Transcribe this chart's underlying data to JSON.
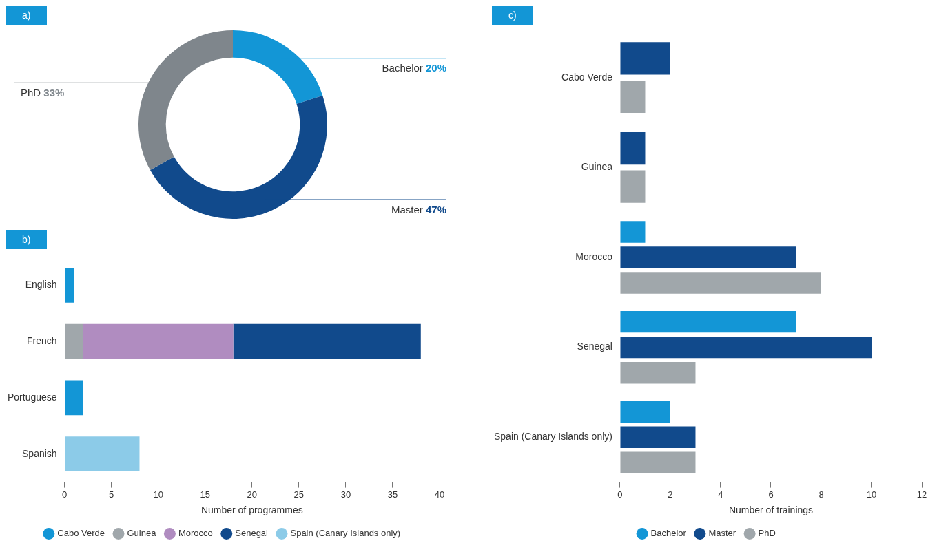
{
  "chart_data": [
    {
      "type": "donut",
      "title": "a)",
      "categories": [
        "Bachelor",
        "Master",
        "PhD"
      ],
      "values": [
        20,
        47,
        33
      ],
      "colors": [
        "#1396d6",
        "#114a8c",
        "#7f868c"
      ],
      "value_labels": [
        "20%",
        "47%",
        "33%"
      ],
      "legend": false
    },
    {
      "type": "bar",
      "title": "b)",
      "orientation": "horizontal",
      "stacked": true,
      "categories": [
        "English",
        "French",
        "Portuguese",
        "Spanish"
      ],
      "series": [
        {
          "name": "Cabo Verde",
          "color": "#1396d6",
          "values": [
            1,
            null,
            2,
            null
          ]
        },
        {
          "name": "Guinea",
          "color": "#a0a7ab",
          "values": [
            null,
            2,
            null,
            null
          ]
        },
        {
          "name": "Morocco",
          "color": "#b08cc0",
          "values": [
            null,
            16,
            null,
            null
          ]
        },
        {
          "name": "Senegal",
          "color": "#114a8c",
          "values": [
            null,
            20,
            null,
            null
          ]
        },
        {
          "name": "Spain (Canary Islands only)",
          "color": "#8ccbe8",
          "values": [
            null,
            null,
            null,
            8
          ]
        }
      ],
      "xlim": [
        0,
        40
      ],
      "xticks": [
        0,
        5,
        10,
        15,
        20,
        25,
        30,
        35,
        40
      ],
      "xlabel": "Number of programmes",
      "legend": "bottom",
      "grid": false
    },
    {
      "type": "bar",
      "title": "c)",
      "orientation": "horizontal",
      "categories": [
        "Cabo Verde",
        "Guinea",
        "Morocco",
        "Senegal",
        "Spain (Canary Islands only)"
      ],
      "series": [
        {
          "name": "Bachelor",
          "color": "#1396d6",
          "values": [
            null,
            null,
            1,
            7,
            2
          ]
        },
        {
          "name": "Master",
          "color": "#114a8c",
          "values": [
            2,
            1,
            7,
            10,
            3
          ]
        },
        {
          "name": "PhD",
          "color": "#a0a7ab",
          "values": [
            1,
            1,
            8,
            3,
            3
          ]
        }
      ],
      "xlim": [
        0,
        12
      ],
      "xticks": [
        0,
        2,
        4,
        6,
        8,
        10,
        12
      ],
      "xlabel": "Number of trainings",
      "legend": "bottom",
      "grid": false
    }
  ]
}
